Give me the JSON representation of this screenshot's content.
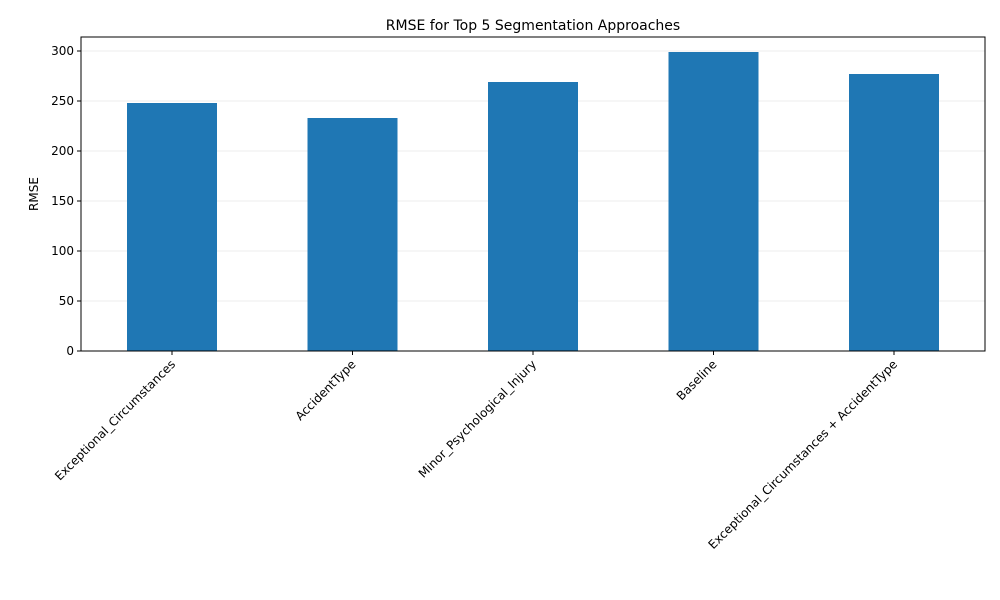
{
  "chart_data": {
    "type": "bar",
    "title": "RMSE for Top 5 Segmentation Approaches",
    "xlabel": "",
    "ylabel": "RMSE",
    "categories": [
      "Exceptional_Circumstances",
      "AccidentType",
      "Minor_Psychological_Injury",
      "Baseline",
      "Exceptional_Circumstances + AccidentType"
    ],
    "values": [
      248,
      233,
      269,
      299,
      277
    ],
    "ylim": [
      0,
      314
    ],
    "yticks": [
      0,
      50,
      100,
      150,
      200,
      250,
      300
    ],
    "grid": "y",
    "bar_color": "#1f77b4"
  }
}
